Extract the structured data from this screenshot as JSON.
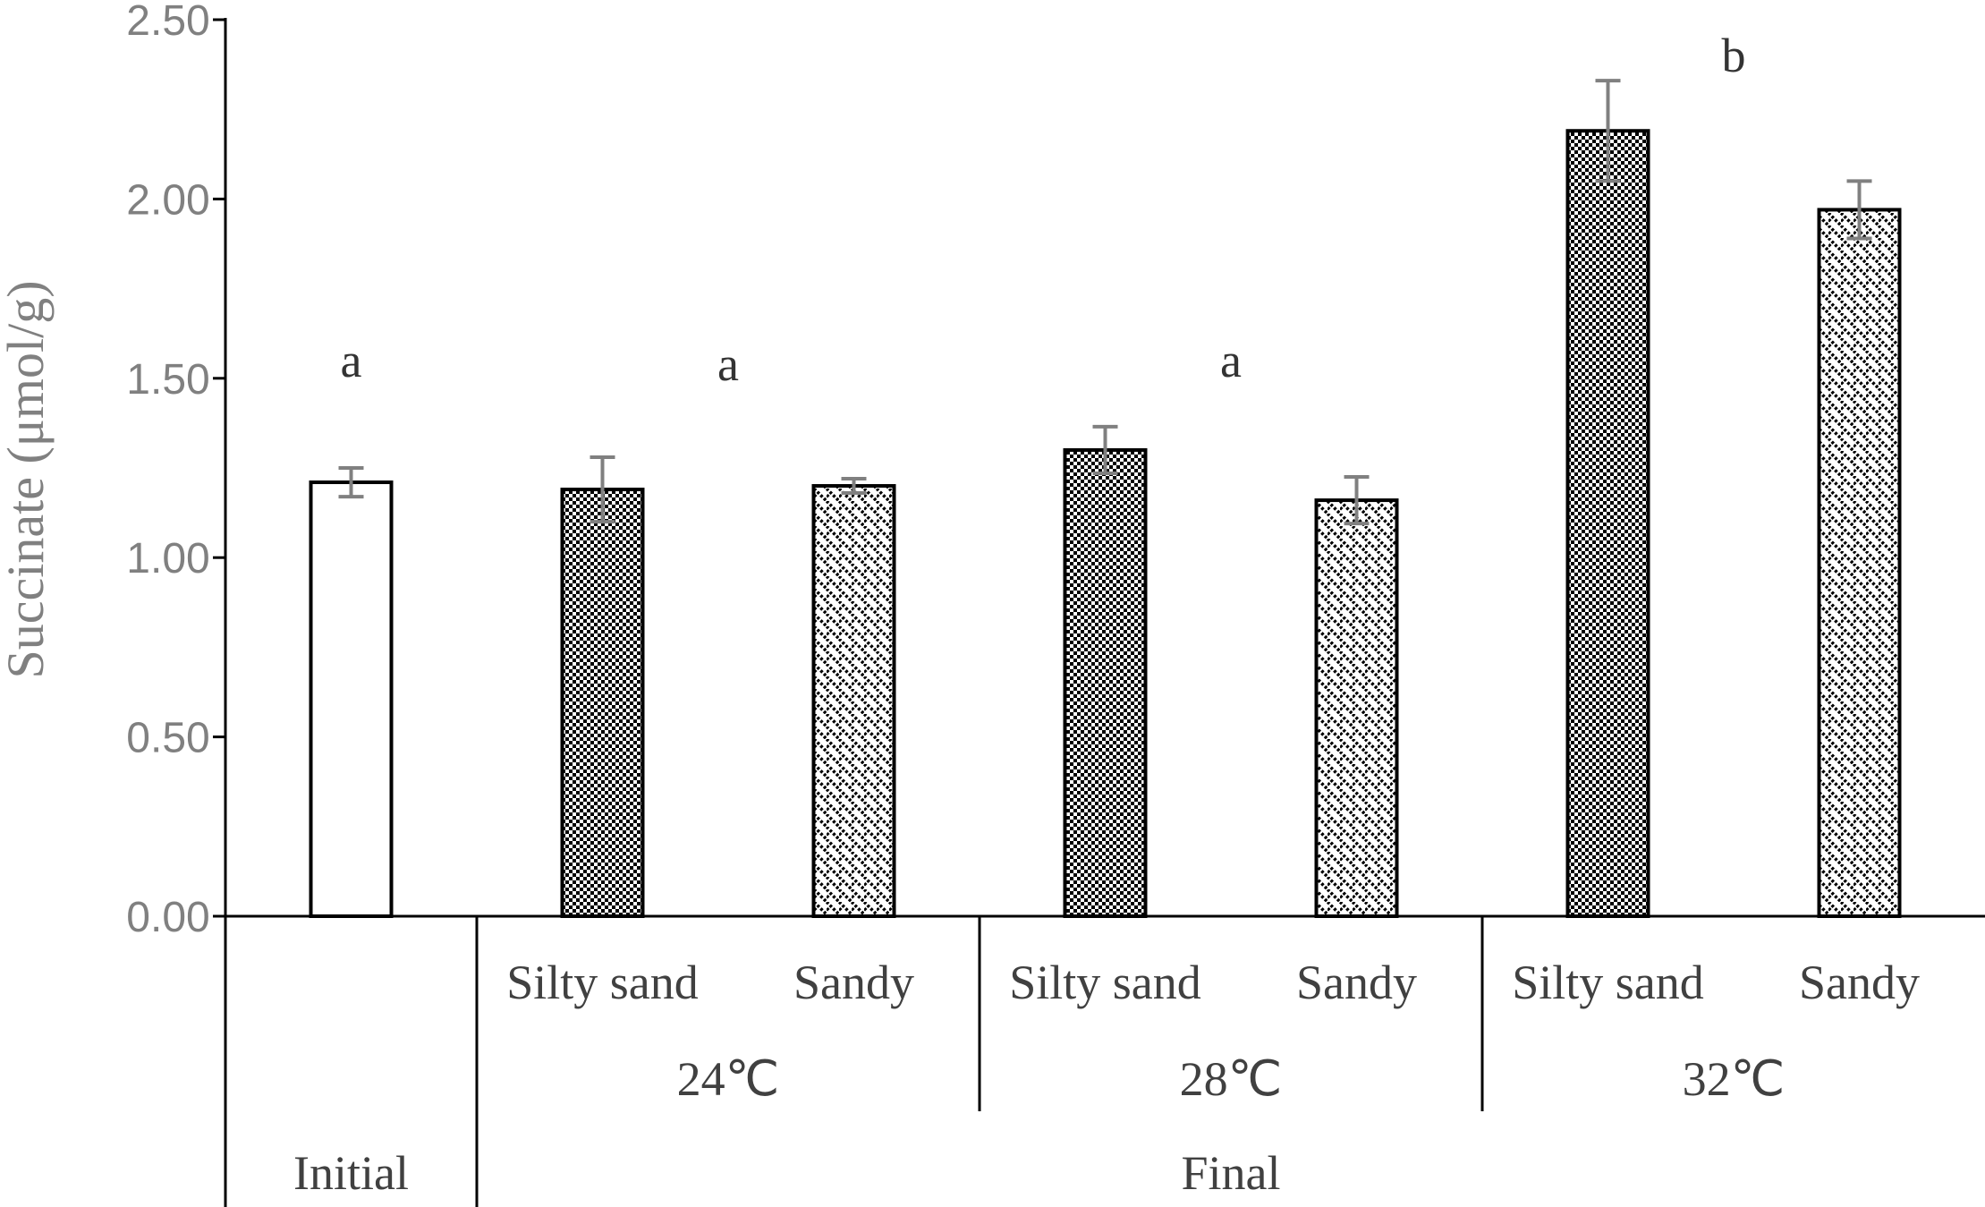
{
  "chart_data": {
    "type": "bar",
    "ylabel": "Succinate (μmol/g)",
    "ylim": [
      0,
      2.5
    ],
    "yticks": [
      "0.00",
      "0.50",
      "1.00",
      "1.50",
      "2.00",
      "2.50"
    ],
    "grid": false,
    "legend": "none",
    "bars": [
      {
        "label": "",
        "value": 1.21,
        "error": 0.04,
        "pattern": "none"
      },
      {
        "label": "Silty sand",
        "value": 1.19,
        "error": 0.09,
        "pattern": "checker"
      },
      {
        "label": "Sandy",
        "value": 1.2,
        "error": 0.02,
        "pattern": "diagonal"
      },
      {
        "label": "Silty sand",
        "value": 1.3,
        "error": 0.065,
        "pattern": "checker"
      },
      {
        "label": "Sandy",
        "value": 1.16,
        "error": 0.065,
        "pattern": "diagonal"
      },
      {
        "label": "Silty sand",
        "value": 2.19,
        "error": 0.14,
        "pattern": "checker"
      },
      {
        "label": "Sandy",
        "value": 1.97,
        "error": 0.08,
        "pattern": "diagonal"
      }
    ],
    "temperature_groups": [
      {
        "label": "24℃",
        "bars": [
          1,
          2
        ]
      },
      {
        "label": "28℃",
        "bars": [
          3,
          4
        ]
      },
      {
        "label": "32℃",
        "bars": [
          5,
          6
        ]
      }
    ],
    "phase_groups": [
      {
        "label": "Initial",
        "bars": [
          0
        ]
      },
      {
        "label": "Final",
        "bars": [
          1,
          2,
          3,
          4,
          5,
          6
        ]
      }
    ],
    "significance": [
      {
        "text": "a",
        "bars": [
          0
        ],
        "value": 1.55
      },
      {
        "text": "a",
        "bars": [
          1,
          2
        ],
        "value": 1.54
      },
      {
        "text": "a",
        "bars": [
          3,
          4
        ],
        "value": 1.55
      },
      {
        "text": "b",
        "bars": [
          5,
          6
        ],
        "value": 2.4
      }
    ],
    "colors": {
      "bar_stroke": "#000000",
      "error_bar": "#808080",
      "axis": "#000000"
    }
  }
}
